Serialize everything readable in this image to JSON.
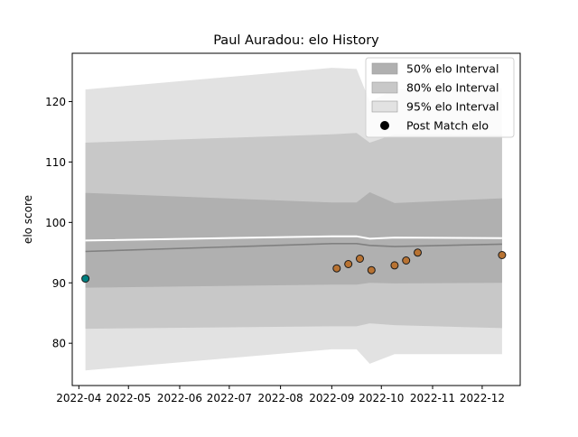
{
  "chart_data": {
    "type": "line",
    "title": "Paul Auradou: elo History",
    "xlabel": "",
    "ylabel": "elo score",
    "xlim": [
      "2022-03-28",
      "2022-12-24"
    ],
    "ylim": [
      73,
      128
    ],
    "x_ticks": [
      "2022-04",
      "2022-05",
      "2022-06",
      "2022-07",
      "2022-08",
      "2022-09",
      "2022-10",
      "2022-11",
      "2022-12"
    ],
    "y_ticks": [
      80,
      90,
      100,
      110,
      120
    ],
    "grid": false,
    "legend_position": "top-right",
    "legend": [
      {
        "label": "50% elo Interval",
        "kind": "patch",
        "color": "#b0b0b0"
      },
      {
        "label": "80% elo Interval",
        "kind": "patch",
        "color": "#c8c8c8"
      },
      {
        "label": "95% elo Interval",
        "kind": "patch",
        "color": "#e2e2e2"
      },
      {
        "label": "Post Match elo",
        "kind": "marker",
        "color": "#000000"
      }
    ],
    "bands": {
      "x": [
        "2022-04-05",
        "2022-09-01",
        "2022-09-16",
        "2022-09-24",
        "2022-10-09",
        "2022-12-13"
      ],
      "p95_low": [
        75.5,
        79.0,
        79.0,
        76.6,
        78.2,
        78.2
      ],
      "p95_high": [
        122.0,
        125.6,
        125.4,
        120.0,
        122.0,
        122.2
      ],
      "p80_low": [
        82.4,
        82.8,
        82.8,
        83.3,
        83.0,
        82.5
      ],
      "p80_high": [
        113.2,
        114.6,
        114.8,
        113.2,
        114.6,
        114.5
      ],
      "p50_low": [
        89.2,
        89.7,
        89.7,
        90.0,
        89.9,
        90.0
      ],
      "p50_high": [
        104.9,
        103.3,
        103.3,
        105.0,
        103.2,
        104.0
      ]
    },
    "mean_line": {
      "x": [
        "2022-04-05",
        "2022-09-01",
        "2022-09-16",
        "2022-09-24",
        "2022-10-09",
        "2022-12-13"
      ],
      "values": [
        95.2,
        96.5,
        96.5,
        96.2,
        96.0,
        96.4
      ],
      "color": "#808080"
    },
    "median_line": {
      "x": [
        "2022-04-05",
        "2022-09-01",
        "2022-09-16",
        "2022-09-24",
        "2022-10-09",
        "2022-12-13"
      ],
      "values": [
        97.0,
        97.7,
        97.7,
        97.3,
        97.5,
        97.4
      ],
      "color": "#ffffff"
    },
    "points": [
      {
        "x": "2022-04-05",
        "y": 90.7,
        "color": "#008080"
      },
      {
        "x": "2022-09-04",
        "y": 92.4,
        "color": "#b87333"
      },
      {
        "x": "2022-09-11",
        "y": 93.1,
        "color": "#b87333"
      },
      {
        "x": "2022-09-18",
        "y": 94.0,
        "color": "#b87333"
      },
      {
        "x": "2022-09-25",
        "y": 92.1,
        "color": "#b87333"
      },
      {
        "x": "2022-10-09",
        "y": 92.9,
        "color": "#b87333"
      },
      {
        "x": "2022-10-16",
        "y": 93.7,
        "color": "#b87333"
      },
      {
        "x": "2022-10-23",
        "y": 95.0,
        "color": "#b87333"
      },
      {
        "x": "2022-12-13",
        "y": 94.6,
        "color": "#b87333"
      }
    ]
  }
}
